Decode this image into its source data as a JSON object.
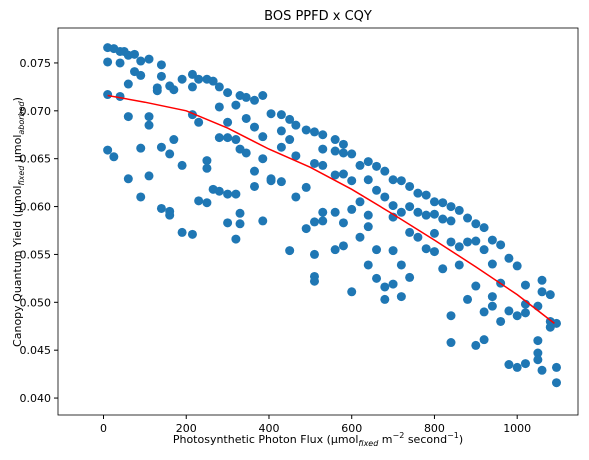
{
  "chart_data": {
    "type": "scatter",
    "title": "BOS PPFD x CQY",
    "xlabel": [
      "Photosynthetic Photon Flux (µmol",
      "fixed",
      " m",
      "−2",
      " second",
      "−1",
      ")"
    ],
    "ylabel": [
      "Canopy Quantum Yield (µmol",
      "fixed",
      " µmol",
      "aborbed",
      ")"
    ],
    "xlim": [
      -110,
      1147
    ],
    "ylim": [
      0.03823,
      0.07865
    ],
    "xticks": [
      0,
      200,
      400,
      600,
      800,
      1000
    ],
    "yticks": [
      {
        "value": 0.04,
        "label": "0.040"
      },
      0.045,
      {
        "value": 0.05,
        "label": "0.050"
      },
      0.055,
      {
        "value": 0.06,
        "label": "0.060"
      },
      0.065,
      {
        "value": 0.07,
        "label": "0.070"
      },
      0.075
    ],
    "grid": false,
    "series": [
      {
        "type": "scatter",
        "color": "#1f77b4",
        "x": [
          10,
          10,
          10,
          10,
          25,
          25,
          40,
          40,
          40,
          50,
          60,
          60,
          60,
          60,
          75,
          75,
          90,
          90,
          90,
          90,
          110,
          110,
          110,
          110,
          130,
          130,
          140,
          140,
          140,
          140,
          160,
          160,
          160,
          160,
          170,
          170,
          190,
          190,
          190,
          215,
          215,
          215,
          215,
          230,
          230,
          230,
          250,
          250,
          250,
          250,
          265,
          265,
          280,
          280,
          280,
          280,
          300,
          300,
          300,
          300,
          300,
          320,
          320,
          320,
          320,
          330,
          330,
          330,
          330,
          345,
          345,
          345,
          365,
          365,
          365,
          365,
          385,
          385,
          385,
          385,
          405,
          405,
          405,
          430,
          430,
          430,
          430,
          450,
          450,
          450,
          465,
          465,
          465,
          490,
          490,
          490,
          510,
          510,
          510,
          510,
          510,
          510,
          530,
          530,
          530,
          530,
          530,
          560,
          560,
          560,
          560,
          560,
          580,
          580,
          580,
          580,
          580,
          600,
          600,
          600,
          600,
          620,
          620,
          620,
          640,
          640,
          640,
          640,
          640,
          660,
          660,
          660,
          660,
          680,
          680,
          680,
          680,
          700,
          700,
          700,
          700,
          700,
          720,
          720,
          720,
          720,
          740,
          740,
          740,
          740,
          760,
          760,
          760,
          780,
          780,
          780,
          800,
          800,
          800,
          800,
          820,
          820,
          820,
          840,
          840,
          840,
          840,
          840,
          860,
          860,
          860,
          880,
          880,
          880,
          900,
          900,
          900,
          900,
          920,
          920,
          920,
          920,
          940,
          940,
          940,
          940,
          960,
          960,
          960,
          980,
          980,
          980,
          1000,
          1000,
          1000,
          1020,
          1020,
          1020,
          1020,
          1050,
          1050,
          1050,
          1050,
          1060,
          1060,
          1060,
          1080,
          1080,
          1080,
          1095,
          1095,
          1095
        ],
        "values": [
          0.0766,
          0.0751,
          0.0717,
          0.0659,
          0.0765,
          0.0652,
          0.0762,
          0.075,
          0.0715,
          0.0762,
          0.0758,
          0.0728,
          0.0694,
          0.0629,
          0.0759,
          0.0741,
          0.0752,
          0.0737,
          0.0661,
          0.061,
          0.0754,
          0.0694,
          0.0685,
          0.0632,
          0.0724,
          0.0721,
          0.0748,
          0.0736,
          0.0662,
          0.0598,
          0.0726,
          0.0655,
          0.0595,
          0.0591,
          0.0722,
          0.067,
          0.0733,
          0.0643,
          0.0573,
          0.0738,
          0.0725,
          0.0696,
          0.0571,
          0.0733,
          0.0688,
          0.0606,
          0.0733,
          0.0648,
          0.064,
          0.0604,
          0.0731,
          0.0618,
          0.0725,
          0.0704,
          0.0672,
          0.0616,
          0.0719,
          0.0688,
          0.0672,
          0.0613,
          0.0583,
          0.0706,
          0.067,
          0.0566,
          0.0613,
          0.0716,
          0.066,
          0.0593,
          0.0582,
          0.0714,
          0.0692,
          0.0656,
          0.0711,
          0.0683,
          0.0637,
          0.0621,
          0.0716,
          0.0673,
          0.065,
          0.0585,
          0.0697,
          0.0629,
          0.0627,
          0.0696,
          0.0679,
          0.0662,
          0.0626,
          0.0691,
          0.067,
          0.0554,
          0.0685,
          0.0653,
          0.061,
          0.068,
          0.062,
          0.0577,
          0.0678,
          0.0645,
          0.0584,
          0.055,
          0.0527,
          0.0522,
          0.0675,
          0.066,
          0.0643,
          0.0594,
          0.0585,
          0.067,
          0.0658,
          0.0633,
          0.0594,
          0.0555,
          0.0665,
          0.0656,
          0.0634,
          0.0583,
          0.0559,
          0.0655,
          0.0627,
          0.0597,
          0.0511,
          0.0643,
          0.0605,
          0.0568,
          0.0647,
          0.0628,
          0.0591,
          0.0579,
          0.0539,
          0.0642,
          0.0617,
          0.0555,
          0.0525,
          0.0637,
          0.061,
          0.0516,
          0.0503,
          0.0628,
          0.0601,
          0.0589,
          0.0554,
          0.0519,
          0.0627,
          0.0594,
          0.0539,
          0.0506,
          0.0621,
          0.06,
          0.0573,
          0.0526,
          0.0614,
          0.0594,
          0.0568,
          0.0612,
          0.0591,
          0.0556,
          0.0605,
          0.0592,
          0.0572,
          0.0553,
          0.0604,
          0.0587,
          0.0535,
          0.06,
          0.0585,
          0.0563,
          0.0486,
          0.0458,
          0.0596,
          0.0558,
          0.0539,
          0.0588,
          0.0563,
          0.0503,
          0.0582,
          0.0564,
          0.0517,
          0.0455,
          0.0578,
          0.0555,
          0.049,
          0.0461,
          0.0565,
          0.054,
          0.0506,
          0.0496,
          0.056,
          0.052,
          0.048,
          0.0546,
          0.0491,
          0.0435,
          0.0538,
          0.0486,
          0.0432,
          0.0518,
          0.0489,
          0.0436,
          0.0498,
          0.0496,
          0.046,
          0.0447,
          0.044,
          0.0523,
          0.0511,
          0.0429,
          0.0508,
          0.0474,
          0.048,
          0.0478,
          0.0432,
          0.0416
        ]
      },
      {
        "type": "line",
        "color": "#ff0000",
        "x": [
          10,
          100,
          200,
          300,
          400,
          500,
          600,
          700,
          800,
          900,
          1000,
          1090
        ],
        "values": [
          0.0716,
          0.0709,
          0.07,
          0.0682,
          0.066,
          0.0641,
          0.0618,
          0.0592,
          0.0565,
          0.0537,
          0.0508,
          0.0478
        ]
      }
    ]
  }
}
